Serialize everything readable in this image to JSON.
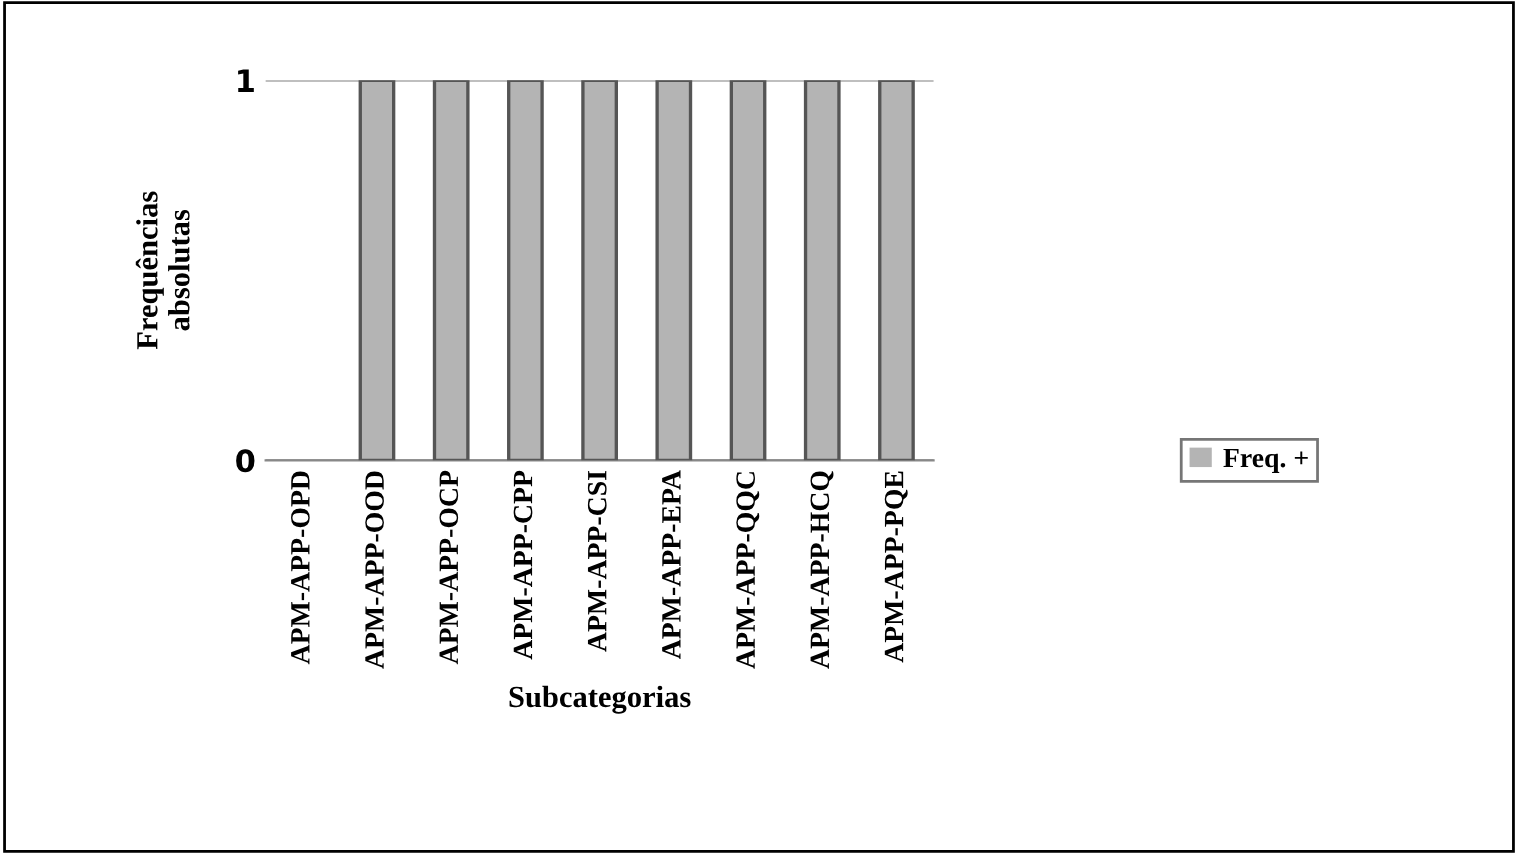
{
  "chart_data": {
    "type": "bar",
    "xlabel": "Subcategorias",
    "ylabel": "Frequências\nabsolutas",
    "categories": [
      "APM-APP-OPD",
      "APM-APP-OOD",
      "APM-APP-OCP",
      "APM-APP-CPP",
      "APM-APP-CSI",
      "APM-APP-EPA",
      "APM-APP-QQC",
      "APM-APP-HCQ",
      "APM-APP-PQE"
    ],
    "series": [
      {
        "name": "Freq. +",
        "color": "#b4b4b4",
        "values": [
          0,
          1,
          1,
          1,
          1,
          1,
          1,
          1,
          1
        ]
      }
    ],
    "ylim": [
      0,
      1
    ],
    "yticks": [
      0,
      1
    ],
    "grid": "y",
    "legend": "right"
  }
}
